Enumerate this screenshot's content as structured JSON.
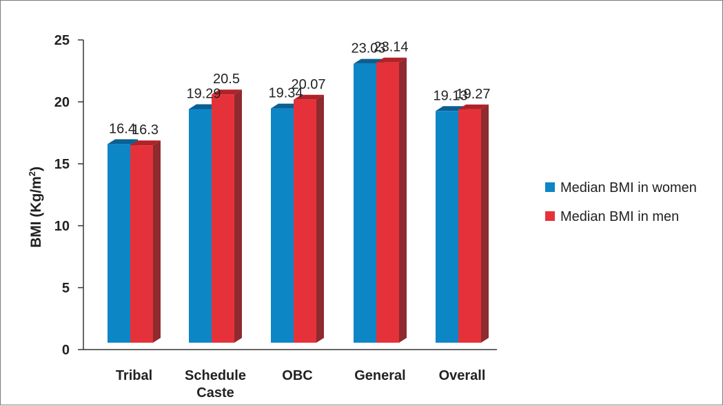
{
  "chart_data": {
    "type": "bar",
    "categories": [
      "Tribal",
      "Schedule Caste",
      "OBC",
      "General",
      "Overall"
    ],
    "category_lines": [
      [
        "Tribal"
      ],
      [
        "Schedule",
        "Caste"
      ],
      [
        "OBC"
      ],
      [
        "General"
      ],
      [
        "Overall"
      ]
    ],
    "series": [
      {
        "name": "Median BMI in women",
        "values": [
          16.4,
          19.29,
          19.34,
          23.03,
          19.13
        ],
        "labels": [
          "16.4",
          "19.29",
          "19.34",
          "23.03",
          "19.13"
        ],
        "color": "#0d86c6",
        "top_color": "#0a5f93",
        "side_color": "#0a5f93"
      },
      {
        "name": "Median BMI in men",
        "values": [
          16.3,
          20.5,
          20.07,
          23.14,
          19.27
        ],
        "labels": [
          "16.3",
          "20.5",
          "20.07",
          "23.14",
          "19.27"
        ],
        "color": "#e5323a",
        "top_color": "#b12228",
        "side_color": "#8f2a2e"
      }
    ],
    "ylabel": "BMI (Kg/m²)",
    "ylabel_parts": {
      "main": "BMI (Kg/m",
      "sup": "2",
      "close": ")"
    },
    "ylim": [
      0,
      25
    ],
    "yticks": [
      "0",
      "5",
      "10",
      "15",
      "20",
      "25"
    ],
    "grid": false,
    "legend_position": "right",
    "bar_style": "3d"
  }
}
